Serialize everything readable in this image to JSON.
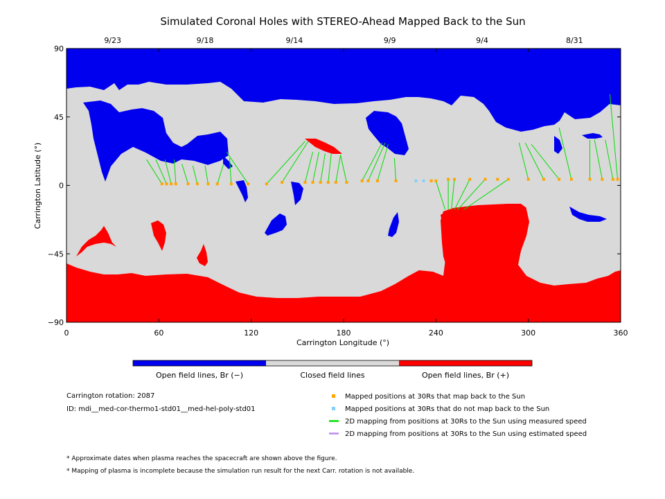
{
  "chart_data": {
    "type": "map",
    "title": "Simulated Coronal Holes with STEREO-Ahead Mapped Back to the Sun",
    "xlabel": "Carrington Longitude (°)",
    "ylabel": "Carrington Latitude (°)",
    "xlim": [
      0,
      360
    ],
    "ylim": [
      -90,
      90
    ],
    "x_ticks": [
      0,
      60,
      120,
      180,
      240,
      300,
      360
    ],
    "y_ticks": [
      -90,
      -45,
      0,
      45,
      90
    ],
    "date_ticks": [
      {
        "label": "9/23",
        "lon": 30
      },
      {
        "label": "9/18",
        "lon": 90
      },
      {
        "label": "9/14",
        "lon": 148
      },
      {
        "label": "9/9",
        "lon": 210
      },
      {
        "label": "9/4",
        "lon": 270
      },
      {
        "label": "8/31",
        "lon": 330
      }
    ],
    "colors": {
      "open_negative": "#0000ee",
      "closed": "#d9d9d9",
      "open_positive": "#ff0000",
      "mapped": "#ffa500",
      "not_mapped": "#87cefa",
      "measured_speed": "#00dd00",
      "estimated_speed": "#bb88ee"
    },
    "regions": {
      "north_polar_negative": {
        "lon": [
          0,
          360
        ],
        "lat_min": 40,
        "lat_max": 90
      },
      "south_polar_positive": {
        "lon": [
          0,
          360
        ],
        "lat_min": -90,
        "lat_max": -50
      }
    },
    "mapped_points": [
      {
        "lon": 62,
        "lat": 1
      },
      {
        "lon": 65,
        "lat": 1
      },
      {
        "lon": 68,
        "lat": 1
      },
      {
        "lon": 71,
        "lat": 1
      },
      {
        "lon": 79,
        "lat": 1
      },
      {
        "lon": 85,
        "lat": 1
      },
      {
        "lon": 92,
        "lat": 1
      },
      {
        "lon": 98,
        "lat": 1
      },
      {
        "lon": 107,
        "lat": 1
      },
      {
        "lon": 118,
        "lat": 1
      },
      {
        "lon": 130,
        "lat": 1
      },
      {
        "lon": 140,
        "lat": 2
      },
      {
        "lon": 155,
        "lat": 2
      },
      {
        "lon": 160,
        "lat": 2
      },
      {
        "lon": 165,
        "lat": 2
      },
      {
        "lon": 170,
        "lat": 2
      },
      {
        "lon": 175,
        "lat": 2
      },
      {
        "lon": 182,
        "lat": 2
      },
      {
        "lon": 192,
        "lat": 3
      },
      {
        "lon": 196,
        "lat": 3
      },
      {
        "lon": 202,
        "lat": 3
      },
      {
        "lon": 214,
        "lat": 3
      },
      {
        "lon": 237,
        "lat": 3
      },
      {
        "lon": 240,
        "lat": 3
      },
      {
        "lon": 248,
        "lat": 4
      },
      {
        "lon": 252,
        "lat": 4
      },
      {
        "lon": 262,
        "lat": 4
      },
      {
        "lon": 272,
        "lat": 4
      },
      {
        "lon": 280,
        "lat": 4
      },
      {
        "lon": 287,
        "lat": 4
      },
      {
        "lon": 300,
        "lat": 4
      },
      {
        "lon": 310,
        "lat": 4
      },
      {
        "lon": 320,
        "lat": 4
      },
      {
        "lon": 328,
        "lat": 4
      },
      {
        "lon": 340,
        "lat": 4
      },
      {
        "lon": 348,
        "lat": 4
      },
      {
        "lon": 355,
        "lat": 4
      },
      {
        "lon": 358,
        "lat": 4
      }
    ],
    "not_mapped_points": [
      {
        "lon": 227,
        "lat": 3
      },
      {
        "lon": 232,
        "lat": 3
      }
    ],
    "mapping_lines_measured": [
      {
        "from": [
          62,
          1
        ],
        "to": [
          52,
          17
        ]
      },
      {
        "from": [
          65,
          1
        ],
        "to": [
          58,
          17
        ]
      },
      {
        "from": [
          68,
          1
        ],
        "to": [
          64,
          17
        ]
      },
      {
        "from": [
          71,
          1
        ],
        "to": [
          70,
          17
        ]
      },
      {
        "from": [
          79,
          1
        ],
        "to": [
          75,
          14
        ]
      },
      {
        "from": [
          85,
          1
        ],
        "to": [
          82,
          13
        ]
      },
      {
        "from": [
          92,
          1
        ],
        "to": [
          90,
          13
        ]
      },
      {
        "from": [
          98,
          1
        ],
        "to": [
          102,
          14
        ]
      },
      {
        "from": [
          107,
          1
        ],
        "to": [
          106,
          18
        ]
      },
      {
        "from": [
          118,
          1
        ],
        "to": [
          104,
          22
        ]
      },
      {
        "from": [
          130,
          1
        ],
        "to": [
          155,
          29
        ]
      },
      {
        "from": [
          140,
          2
        ],
        "to": [
          157,
          29
        ]
      },
      {
        "from": [
          155,
          2
        ],
        "to": [
          160,
          22
        ]
      },
      {
        "from": [
          160,
          2
        ],
        "to": [
          164,
          22
        ]
      },
      {
        "from": [
          165,
          2
        ],
        "to": [
          168,
          21
        ]
      },
      {
        "from": [
          170,
          2
        ],
        "to": [
          172,
          21
        ]
      },
      {
        "from": [
          175,
          2
        ],
        "to": [
          178,
          20
        ]
      },
      {
        "from": [
          182,
          2
        ],
        "to": [
          178,
          20
        ]
      },
      {
        "from": [
          192,
          3
        ],
        "to": [
          205,
          28
        ]
      },
      {
        "from": [
          196,
          3
        ],
        "to": [
          207,
          28
        ]
      },
      {
        "from": [
          202,
          3
        ],
        "to": [
          209,
          27
        ]
      },
      {
        "from": [
          214,
          3
        ],
        "to": [
          213,
          18
        ]
      },
      {
        "from": [
          240,
          3
        ],
        "to": [
          246,
          -16
        ]
      },
      {
        "from": [
          248,
          4
        ],
        "to": [
          248,
          -16
        ]
      },
      {
        "from": [
          252,
          4
        ],
        "to": [
          250,
          -16
        ]
      },
      {
        "from": [
          262,
          4
        ],
        "to": [
          252,
          -16
        ]
      },
      {
        "from": [
          272,
          4
        ],
        "to": [
          254,
          -16
        ]
      },
      {
        "from": [
          287,
          4
        ],
        "to": [
          258,
          -16
        ]
      },
      {
        "from": [
          300,
          4
        ],
        "to": [
          294,
          28
        ]
      },
      {
        "from": [
          310,
          4
        ],
        "to": [
          298,
          28
        ]
      },
      {
        "from": [
          320,
          4
        ],
        "to": [
          302,
          27
        ]
      },
      {
        "from": [
          328,
          4
        ],
        "to": [
          320,
          38
        ]
      },
      {
        "from": [
          340,
          4
        ],
        "to": [
          340,
          30
        ]
      },
      {
        "from": [
          348,
          4
        ],
        "to": [
          343,
          30
        ]
      },
      {
        "from": [
          355,
          4
        ],
        "to": [
          350,
          30
        ]
      },
      {
        "from": [
          358,
          4
        ],
        "to": [
          353,
          60
        ]
      }
    ],
    "colorbar": [
      {
        "label": "Open field lines, Br (−)",
        "color": "#0000ee"
      },
      {
        "label": "Closed field lines",
        "color": "#d9d9d9"
      },
      {
        "label": "Open field lines, Br (+)",
        "color": "#ff0000"
      }
    ],
    "legend": [
      {
        "label": "Mapped positions at 30Rs that map back to the Sun",
        "kind": "square",
        "color": "#ffa500"
      },
      {
        "label": "Mapped positions at 30Rs that do not map back to the Sun",
        "kind": "square",
        "color": "#87cefa"
      },
      {
        "label": "2D mapping from positions at 30Rs to the Sun using measured speed",
        "kind": "line",
        "color": "#00dd00"
      },
      {
        "label": "2D mapping from positions at 30Rs to the Sun using estimated speed",
        "kind": "line",
        "color": "#bb88ee"
      }
    ]
  },
  "info": {
    "rotation": "Carrington rotation: 2087",
    "id": "ID: mdi__med-cor-thermo1-std01__med-hel-poly-std01"
  },
  "footnotes": [
    "* Approximate dates when plasma reaches the spacecraft are shown above the figure.",
    "* Mapping of plasma is incomplete because the simulation run result for the next Carr. rotation is not available."
  ]
}
